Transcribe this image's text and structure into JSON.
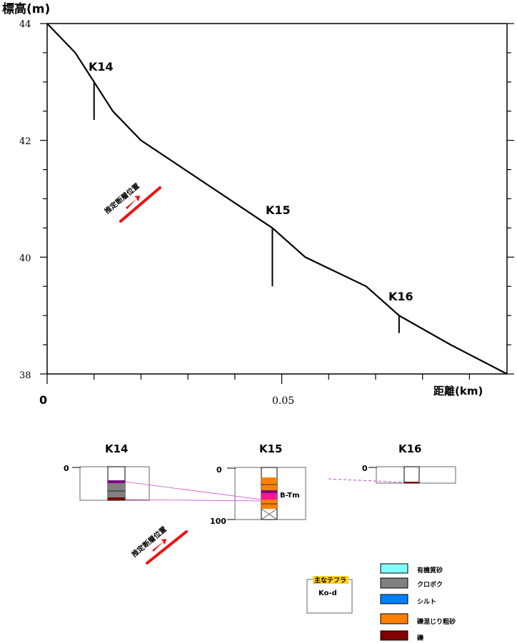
{
  "chart_data": {
    "type": "line",
    "title": "",
    "ylabel": "標高(m)",
    "xlabel": "距離(km)",
    "ylim": [
      38,
      44
    ],
    "xlim": [
      0,
      0.098
    ],
    "yticks": [
      "44",
      "42",
      "40",
      "38"
    ],
    "xticks": [
      "0",
      "0.05"
    ],
    "profile": {
      "x": [
        0,
        0.006,
        0.01,
        0.014,
        0.02,
        0.048,
        0.055,
        0.068,
        0.075,
        0.086,
        0.098
      ],
      "y": [
        44,
        43.5,
        43.0,
        42.5,
        42.0,
        40.5,
        40.0,
        39.5,
        39.0,
        38.5,
        38.0
      ]
    },
    "boreholes": [
      {
        "name": "K14",
        "x": 0.01,
        "y_top": 43.0,
        "y_bottom": 42.35
      },
      {
        "name": "K15",
        "x": 0.048,
        "y_top": 40.5,
        "y_bottom": 39.5
      },
      {
        "name": "K16",
        "x": 0.075,
        "y_top": 39.0,
        "y_bottom": 38.7
      }
    ],
    "fault_label": "推定断層位置"
  },
  "columns": {
    "titles": [
      "K14",
      "K15",
      "K16"
    ],
    "depth_labels": {
      "k14_top": "0",
      "k15_top": "0",
      "k15_bottom": "100",
      "k16_top": "0"
    },
    "tephra_tag": "B-Tm",
    "fault_label": "推定断層位置"
  },
  "legend": {
    "tephra_box_title": "主なテフラ",
    "tephra_box_value": "Ko-d",
    "items": [
      {
        "label": "有機質砂",
        "color": "#80ffff"
      },
      {
        "label": "クロボク",
        "color": "#808080"
      },
      {
        "label": "シルト",
        "color": "#0080ff"
      },
      {
        "label": "礫混じり粗砂",
        "color": "#ff8000"
      },
      {
        "label": "礫",
        "color": "#800000"
      }
    ]
  },
  "colors": {
    "fault_arrow": "#ee1111",
    "correlation_line": "#cc44cc",
    "tephra_magenta": "#ff1493",
    "tephra_box_title_bg": "#ffd21f"
  }
}
